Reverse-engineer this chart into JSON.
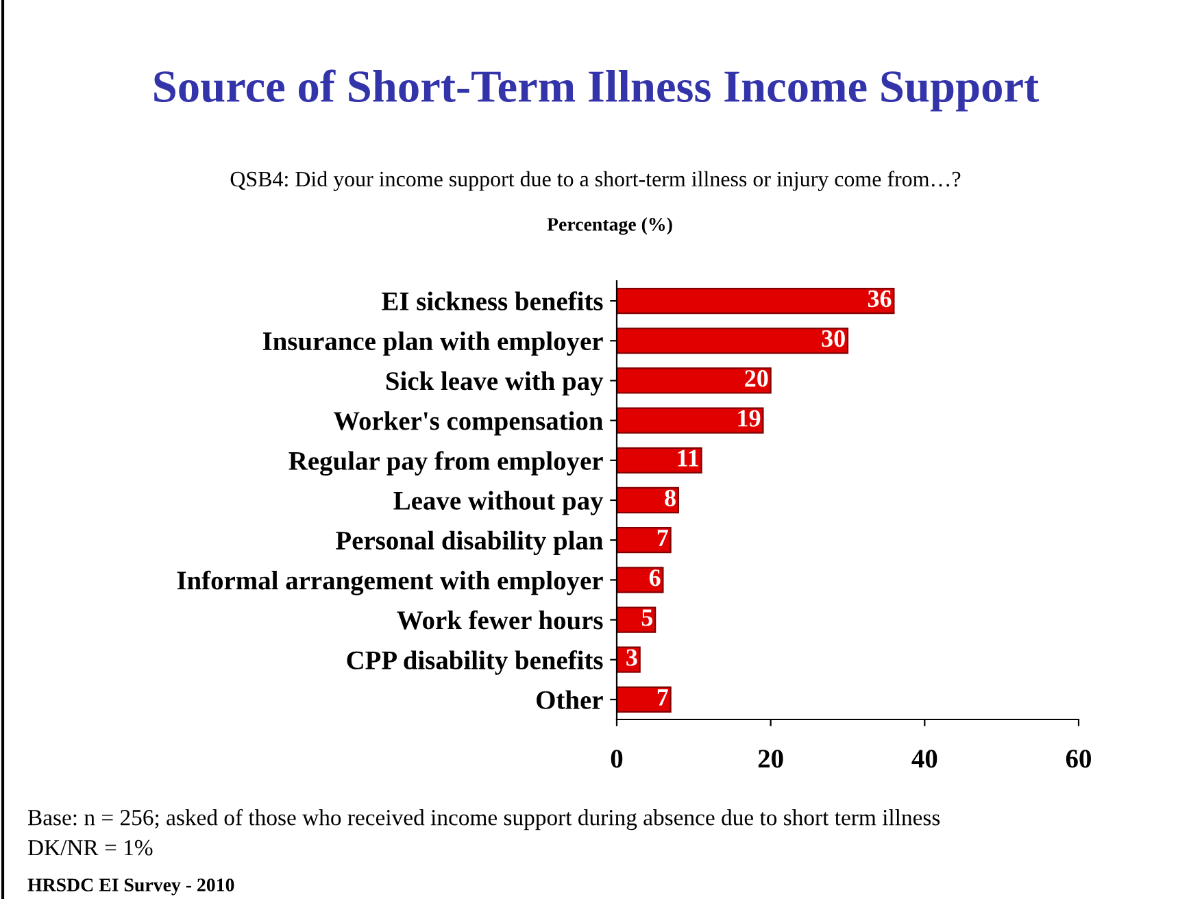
{
  "chart_data": {
    "type": "bar",
    "orientation": "horizontal",
    "title": "Source of Short-Term Illness Income Support",
    "subtitle": "QSB4: Did your income support due to a short-term illness or injury come from…?",
    "xlabel": "Percentage (%)",
    "categories": [
      "EI sickness benefits",
      "Insurance plan with employer",
      "Sick leave with pay",
      "Worker's compensation",
      "Regular pay from employer",
      "Leave without pay",
      "Personal disability plan",
      "Informal arrangement with employer",
      "Work fewer hours",
      "CPP disability benefits",
      "Other"
    ],
    "values": [
      36,
      30,
      20,
      19,
      11,
      8,
      7,
      6,
      5,
      3,
      7
    ],
    "color": "#e00000",
    "data_labels": true,
    "xlim": [
      0,
      60
    ],
    "xticks": [
      0,
      20,
      40,
      60
    ],
    "grid": false,
    "legend": false,
    "annotations": [
      "Base: n = 256; asked of those who received income support during absence due to short term illness",
      "DK/NR = 1%",
      "HRSDC EI Survey - 2010"
    ]
  }
}
